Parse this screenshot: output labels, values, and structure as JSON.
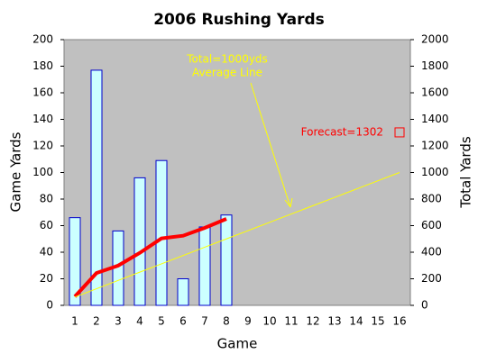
{
  "chart_data": {
    "type": "bar",
    "title": "2006 Rushing Yards",
    "x_label": "Game",
    "y_label": "Game Yards",
    "y2_label": "Total Yards",
    "categories": [
      "1",
      "2",
      "3",
      "4",
      "5",
      "6",
      "7",
      "8",
      "9",
      "10",
      "11",
      "12",
      "13",
      "14",
      "15",
      "16"
    ],
    "series": [
      {
        "type": "bar",
        "color": "#ccffff",
        "edge_color": "#0000cc",
        "values": [
          66,
          177,
          56,
          96,
          109,
          20,
          59,
          68,
          null,
          null,
          null,
          null,
          null,
          null,
          null,
          null
        ]
      },
      {
        "type": "line",
        "axis": "y2",
        "color": "#ff0000",
        "values": [
          66,
          243,
          299,
          395,
          504,
          524,
          583,
          651,
          null,
          null,
          null,
          null,
          null,
          null,
          null,
          null
        ]
      },
      {
        "type": "line",
        "axis": "y2",
        "color": "#ffff00",
        "values": [
          62.5,
          125,
          187.5,
          250,
          312.5,
          375,
          437.5,
          500,
          562.5,
          625,
          687.5,
          750,
          812.5,
          875,
          937.5,
          1000
        ]
      },
      {
        "type": "marker",
        "axis": "y2",
        "color": "#ff0000",
        "values": [
          null,
          null,
          null,
          null,
          null,
          null,
          null,
          null,
          null,
          null,
          null,
          null,
          null,
          null,
          null,
          1302
        ]
      }
    ],
    "annotations": [
      {
        "lines": [
          "Total=1000yds",
          "Average Line"
        ],
        "color": "#ffff00"
      },
      {
        "lines": [
          "Forecast=1302"
        ],
        "color": "#ff0000"
      }
    ],
    "ylim": [
      0,
      200
    ],
    "yticks": [
      0,
      20,
      40,
      60,
      80,
      100,
      120,
      140,
      160,
      180,
      200
    ],
    "y2lim": [
      0,
      2000
    ],
    "y2ticks": [
      0,
      200,
      400,
      600,
      800,
      1000,
      1200,
      1400,
      1600,
      1800,
      2000
    ],
    "plot_background": "#c0c0c0",
    "grid": false
  }
}
